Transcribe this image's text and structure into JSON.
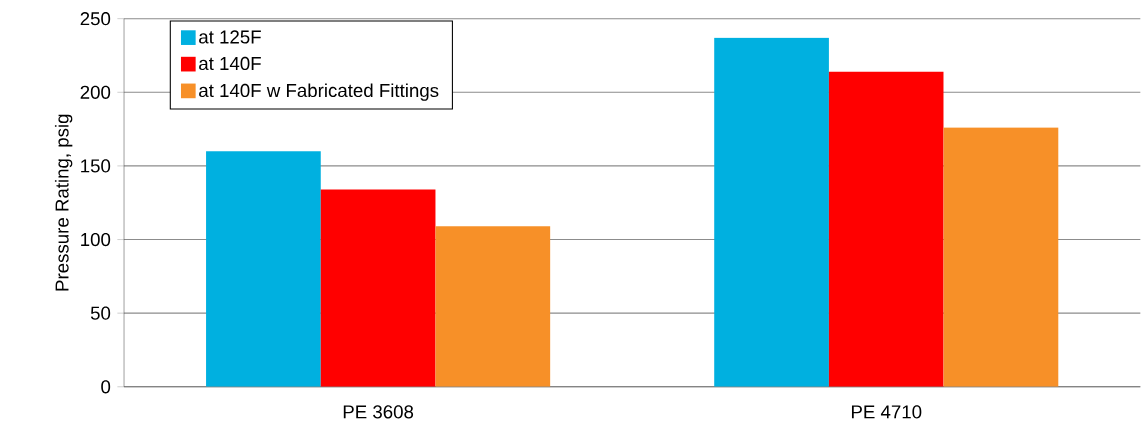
{
  "chart_data": {
    "type": "bar",
    "ylabel": "Pressure Rating, psig",
    "categories": [
      "PE 3608",
      "PE 4710"
    ],
    "series": [
      {
        "name": "at 125F",
        "color": "#00b0e0",
        "values": [
          160,
          237
        ]
      },
      {
        "name": "at 140F",
        "color": "#ff0000",
        "values": [
          134,
          214
        ]
      },
      {
        "name": "at 140F w Fabricated Fittings",
        "color": "#f79028",
        "values": [
          109,
          176
        ]
      }
    ],
    "ylim": [
      0,
      250
    ],
    "yticks": [
      0,
      50,
      100,
      150,
      200,
      250
    ],
    "grid": "y",
    "legend": "top left"
  }
}
